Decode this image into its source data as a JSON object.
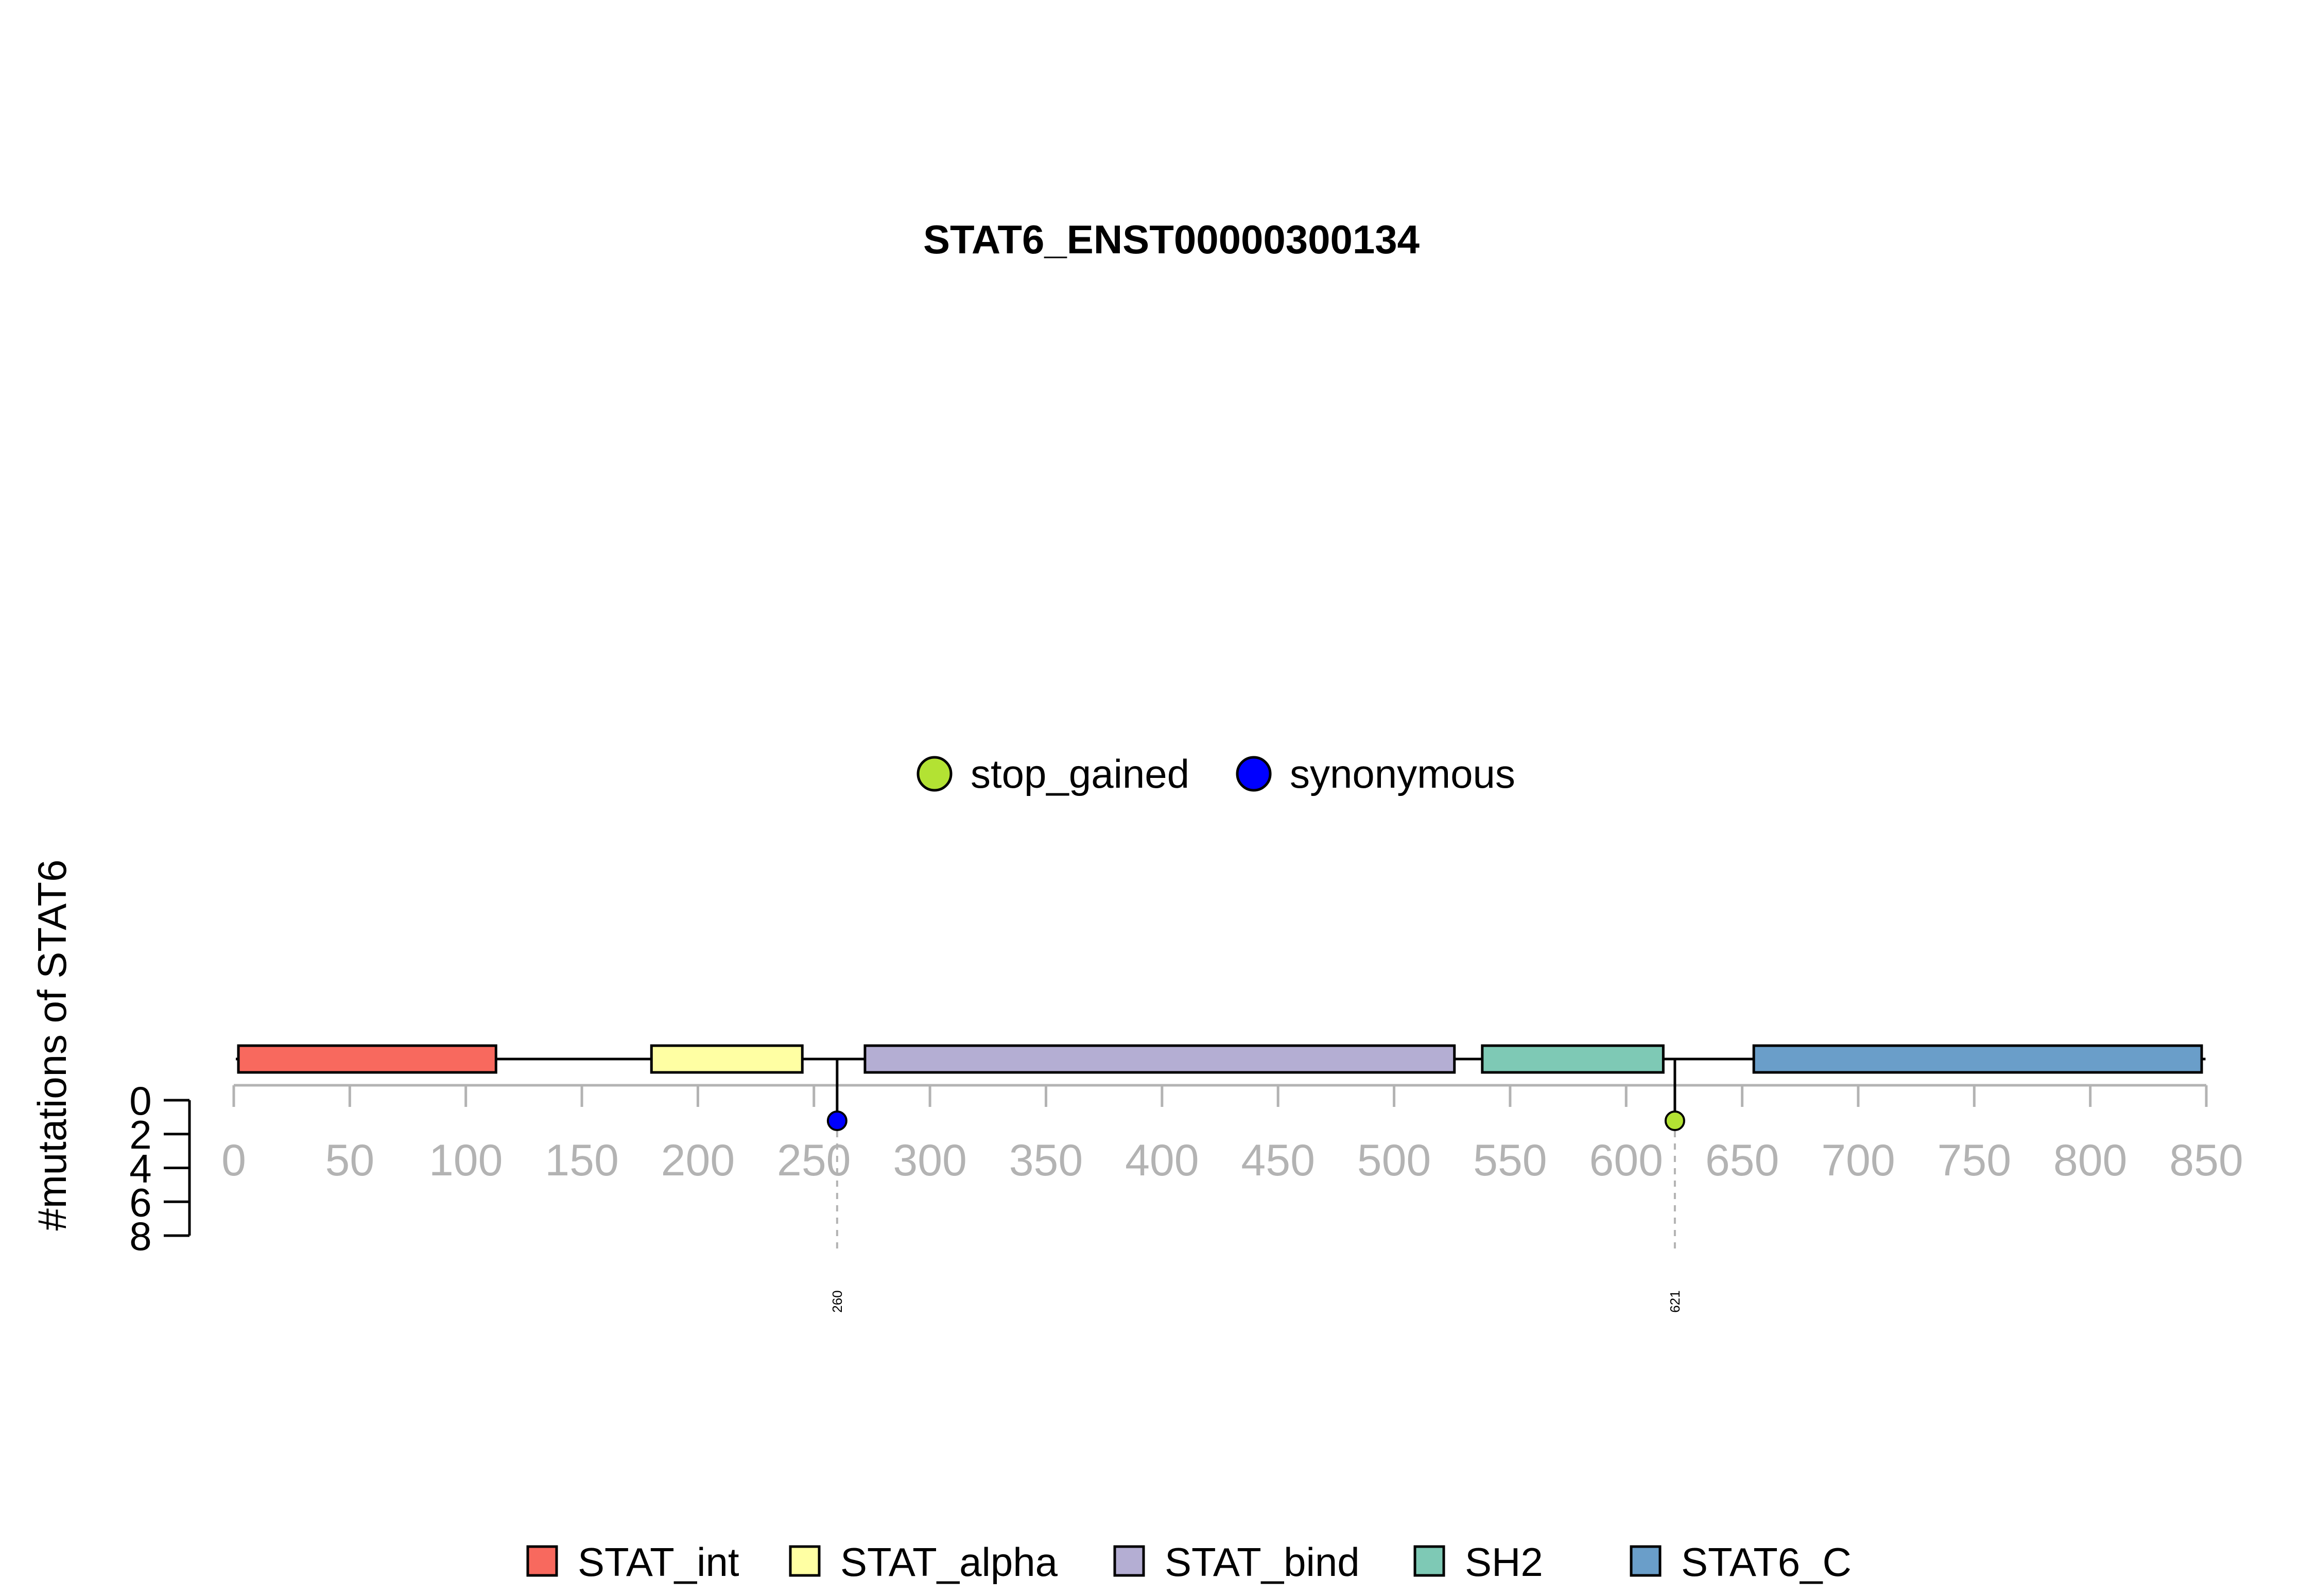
{
  "chart_data": {
    "type": "lollipop",
    "title": "STAT6_ENST00000300134",
    "ylabel": "#mutations of STAT6",
    "protein_length": 847,
    "x_ticks": [
      0,
      50,
      100,
      150,
      200,
      250,
      300,
      350,
      400,
      450,
      500,
      550,
      600,
      650,
      700,
      750,
      800,
      850
    ],
    "y_ticks": [
      0,
      2,
      4,
      6,
      8
    ],
    "ylim": [
      0,
      8
    ],
    "mutation_legend": [
      {
        "name": "stop_gained",
        "color": "#b3e233"
      },
      {
        "name": "synonymous",
        "color": "#0000ff"
      }
    ],
    "mutations": [
      {
        "position": 260,
        "label": "260",
        "type": "synonymous",
        "count": 1,
        "color": "#0000ff"
      },
      {
        "position": 621,
        "label": "621",
        "type": "stop_gained",
        "count": 1,
        "color": "#b3e233"
      }
    ],
    "domains": [
      {
        "name": "STAT_int",
        "start": 2,
        "end": 113,
        "color": "#f8695e"
      },
      {
        "name": "STAT_alpha",
        "start": 180,
        "end": 245,
        "color": "#ffffa3"
      },
      {
        "name": "STAT_bind",
        "start": 272,
        "end": 526,
        "color": "#b4aed3"
      },
      {
        "name": "SH2",
        "start": 538,
        "end": 616,
        "color": "#7ec9b5"
      },
      {
        "name": "STAT6_C",
        "start": 655,
        "end": 848,
        "color": "#6a9ec9"
      }
    ]
  }
}
